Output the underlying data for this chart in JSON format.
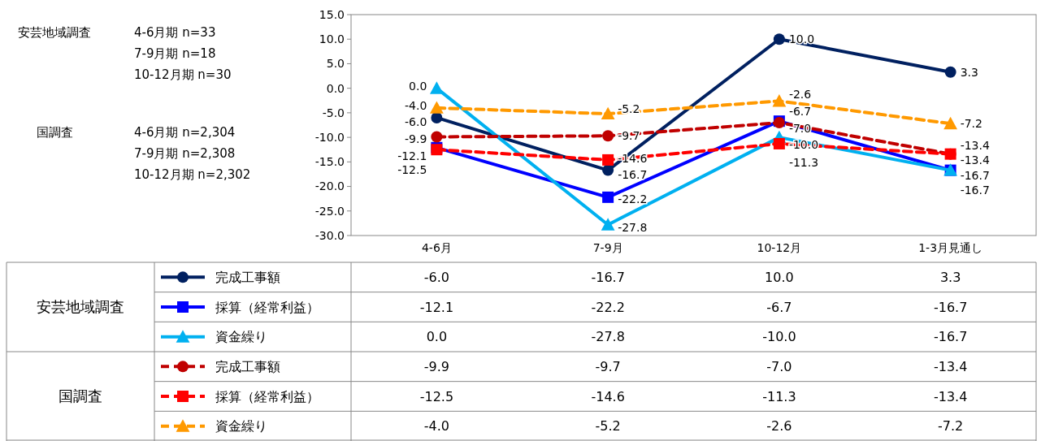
{
  "chart_data": {
    "type": "line",
    "categories": [
      "4-6月",
      "7-9月",
      "10-12月",
      "1-3月見通し"
    ],
    "series": [
      {
        "name": "完成工事額",
        "color": "#002060",
        "values": [
          -6.0,
          -16.7,
          10.0,
          3.3
        ],
        "value_labels": [
          "-6.0",
          "-16.7",
          "10.0",
          "3.3"
        ],
        "marker": "circle",
        "line_style": "solid"
      },
      {
        "name": "採算（経常利益）",
        "color": "#0000ff",
        "values": [
          -12.1,
          -22.2,
          -6.7,
          -16.7
        ],
        "value_labels": [
          "-12.1",
          "-22.2",
          "-6.7",
          "-16.7"
        ],
        "marker": "square",
        "line_style": "solid"
      },
      {
        "name": "資金繰り",
        "color": "#00b0f0",
        "values": [
          0.0,
          -27.8,
          -10.0,
          -16.7
        ],
        "value_labels": [
          "0.0",
          "-27.8",
          "-10.0",
          "-16.7"
        ],
        "marker": "triangle",
        "line_style": "solid"
      },
      {
        "name": "完成工事額",
        "color": "#c00000",
        "values": [
          -9.9,
          -9.7,
          -7.0,
          -13.4
        ],
        "value_labels": [
          "-9.9",
          "-9.7",
          "-7.0",
          "-13.4"
        ],
        "marker": "circle",
        "line_style": "dashed"
      },
      {
        "name": "採算（経常利益）",
        "color": "#ff0000",
        "values": [
          -12.5,
          -14.6,
          -11.3,
          -13.4
        ],
        "value_labels": [
          "-12.5",
          "-14.6",
          "-11.3",
          "-13.4"
        ],
        "marker": "square",
        "line_style": "dashed"
      },
      {
        "name": "資金繰り",
        "color": "#ff9900",
        "values": [
          -4.0,
          -5.2,
          -2.6,
          -7.2
        ],
        "value_labels": [
          "-4.0",
          "-5.2",
          "-2.6",
          "-7.2"
        ],
        "marker": "triangle",
        "line_style": "dashed"
      }
    ],
    "ylim": [
      -30,
      15
    ],
    "yticks": [
      {
        "value": -30,
        "label": "-30.0"
      },
      {
        "value": -25,
        "label": "-25.0"
      },
      {
        "value": -20,
        "label": "-20.0"
      },
      {
        "value": -15,
        "label": "-15.0"
      },
      {
        "value": -10,
        "label": "-10.0"
      },
      {
        "value": -5,
        "label": "-5.0"
      },
      {
        "value": 0,
        "label": "0.0"
      },
      {
        "value": 5,
        "label": "5.0"
      },
      {
        "value": 10,
        "label": "10.0"
      },
      {
        "value": 15,
        "label": "15.0"
      }
    ],
    "legend": "bottom",
    "annotations": [
      "安芸地域調査",
      "国調査",
      "4-6月期 n=33",
      "7-9月期 n=18",
      "10-12月期 n=30",
      "4-6月期 n=2,304",
      "7-9月期 n=2,308",
      "10-12月期 n=2,302"
    ]
  }
}
